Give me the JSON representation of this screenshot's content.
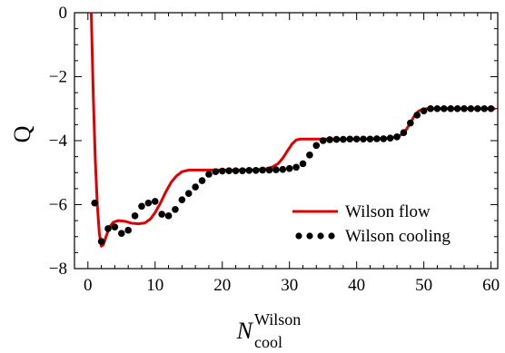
{
  "chart_data": {
    "type": "line",
    "xlabel": {
      "base": "N",
      "sub": "cool",
      "sup": "Wilson"
    },
    "ylabel": "Q",
    "xlim": [
      -2,
      61
    ],
    "ylim": [
      -8,
      0
    ],
    "xticks": [
      0,
      10,
      20,
      30,
      40,
      50,
      60
    ],
    "yticks": [
      0,
      -2,
      -4,
      -6,
      -8
    ],
    "ytick_labels": [
      "0",
      "−2",
      "−4",
      "−6",
      "−8"
    ],
    "grid": false,
    "legend_position": "lower-right",
    "colors": {
      "flow": "#e00000",
      "cooling": "#000000"
    },
    "series": [
      {
        "name": "Wilson flow",
        "style": "solid-line",
        "x": [
          0.5,
          0.8,
          1.1,
          1.4,
          1.7,
          2.0,
          2.3,
          2.7,
          3.2,
          3.8,
          4.5,
          5.5,
          6.5,
          7.5,
          8.5,
          9.3,
          10.0,
          10.8,
          11.6,
          12.4,
          13.2,
          14.0,
          15.0,
          17.0,
          20.0,
          23.0,
          25.0,
          26.5,
          27.5,
          28.3,
          29.0,
          29.7,
          30.4,
          31.0,
          31.6,
          32.3,
          34.0,
          37.0,
          40.0,
          43.0,
          45.0,
          46.0,
          46.8,
          47.4,
          48.0,
          48.6,
          49.2,
          49.8,
          50.5,
          52.0,
          55.0,
          58.0,
          60.5
        ],
        "y": [
          0.0,
          -2.6,
          -4.6,
          -6.0,
          -6.9,
          -7.3,
          -7.25,
          -7.0,
          -6.7,
          -6.55,
          -6.5,
          -6.52,
          -6.58,
          -6.6,
          -6.57,
          -6.45,
          -6.25,
          -5.95,
          -5.6,
          -5.3,
          -5.1,
          -4.97,
          -4.92,
          -4.92,
          -4.92,
          -4.92,
          -4.91,
          -4.88,
          -4.82,
          -4.72,
          -4.55,
          -4.32,
          -4.1,
          -3.98,
          -3.95,
          -3.95,
          -3.95,
          -3.95,
          -3.95,
          -3.94,
          -3.92,
          -3.88,
          -3.8,
          -3.65,
          -3.45,
          -3.22,
          -3.08,
          -3.02,
          -3.0,
          -3.0,
          -3.0,
          -3.0,
          -3.0
        ]
      },
      {
        "name": "Wilson cooling",
        "style": "dots",
        "x": [
          1,
          2,
          3,
          4,
          5,
          6,
          7,
          8,
          9,
          10,
          11,
          12,
          13,
          14,
          15,
          16,
          17,
          18,
          19,
          20,
          21,
          22,
          23,
          24,
          25,
          26,
          27,
          28,
          29,
          30,
          31,
          32,
          33,
          34,
          35,
          36,
          37,
          38,
          39,
          40,
          41,
          42,
          43,
          44,
          45,
          46,
          47,
          48,
          49,
          50,
          51,
          52,
          53,
          54,
          55,
          56,
          57,
          58,
          59,
          60
        ],
        "y": [
          -5.95,
          -7.15,
          -6.75,
          -6.7,
          -6.9,
          -6.8,
          -6.35,
          -6.05,
          -5.95,
          -5.9,
          -6.3,
          -6.35,
          -6.15,
          -5.85,
          -5.65,
          -5.45,
          -5.25,
          -5.05,
          -4.97,
          -4.95,
          -4.94,
          -4.94,
          -4.94,
          -4.93,
          -4.93,
          -4.92,
          -4.92,
          -4.91,
          -4.9,
          -4.87,
          -4.83,
          -4.72,
          -4.45,
          -4.15,
          -4.0,
          -3.97,
          -3.96,
          -3.96,
          -3.95,
          -3.95,
          -3.95,
          -3.95,
          -3.94,
          -3.94,
          -3.92,
          -3.88,
          -3.75,
          -3.45,
          -3.2,
          -3.07,
          -3.0,
          -3.0,
          -3.0,
          -3.0,
          -3.0,
          -3.0,
          -3.0,
          -3.0,
          -3.0,
          -3.0
        ]
      }
    ]
  }
}
